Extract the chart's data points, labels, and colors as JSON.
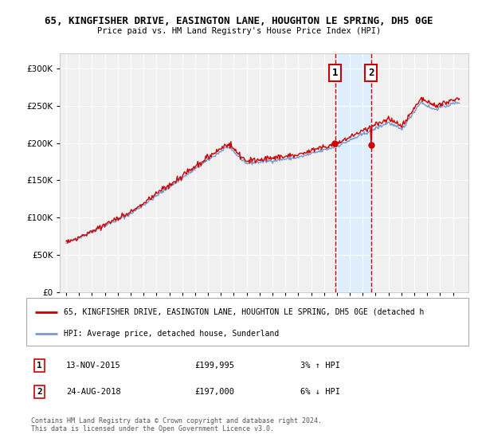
{
  "title1": "65, KINGFISHER DRIVE, EASINGTON LANE, HOUGHTON LE SPRING, DH5 0GE",
  "title2": "Price paid vs. HM Land Registry's House Price Index (HPI)",
  "legend_line1": "65, KINGFISHER DRIVE, EASINGTON LANE, HOUGHTON LE SPRING, DH5 0GE (detached h",
  "legend_line2": "HPI: Average price, detached house, Sunderland",
  "footer": "Contains HM Land Registry data © Crown copyright and database right 2024.\nThis data is licensed under the Open Government Licence v3.0.",
  "ylim": [
    0,
    320000
  ],
  "yticks": [
    0,
    50000,
    100000,
    150000,
    200000,
    250000,
    300000
  ],
  "ytick_labels": [
    "£0",
    "£50K",
    "£100K",
    "£150K",
    "£200K",
    "£250K",
    "£300K"
  ],
  "background_color": "#ffffff",
  "plot_bg_color": "#f0f0f0",
  "grid_color": "#ffffff",
  "red_color": "#cc0000",
  "blue_color": "#7799cc",
  "shade_color": "#ddeeff",
  "purchase1_x": 2015.87,
  "purchase2_x": 2018.65,
  "purchase1_price": 199995,
  "purchase2_price": 197000,
  "xlim_left": 1994.5,
  "xlim_right": 2026.2
}
